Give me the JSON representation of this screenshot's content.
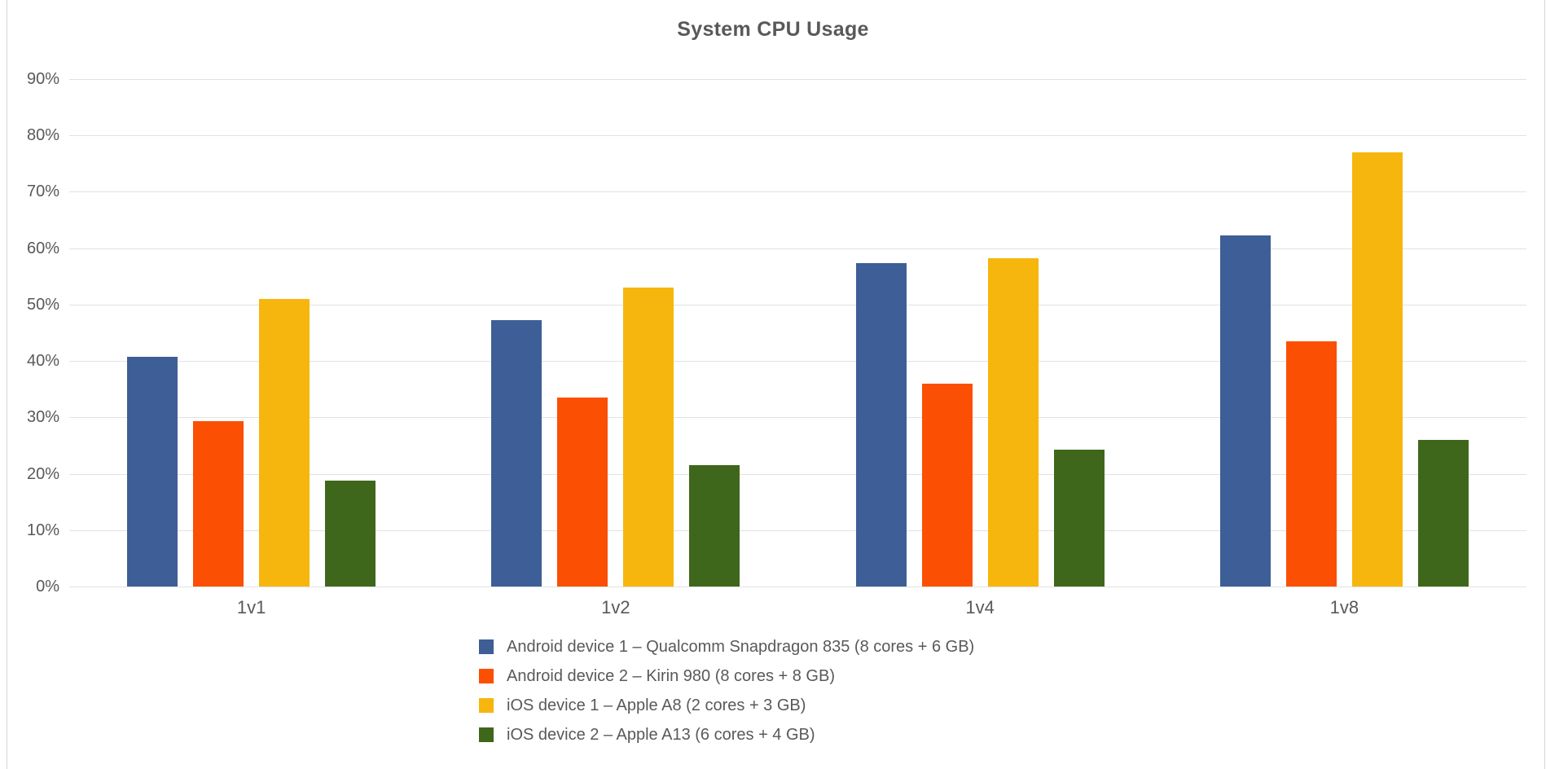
{
  "title": "System CPU Usage",
  "chart_data": {
    "type": "bar",
    "title": "System CPU Usage",
    "xlabel": "",
    "ylabel": "",
    "categories": [
      "1v1",
      "1v2",
      "1v4",
      "1v8"
    ],
    "series": [
      {
        "name": "Android device 1 – Qualcomm Snapdragon 835 (8 cores + 6 GB)",
        "color": "#3D5E96",
        "values": [
          40.8,
          47.3,
          57.3,
          62.2
        ]
      },
      {
        "name": "Android device 2 – Kirin 980 (8 cores + 8 GB)",
        "color": "#FB4F03",
        "values": [
          29.3,
          33.5,
          36.0,
          43.5
        ]
      },
      {
        "name": "iOS device 1 – Apple A8 (2 cores + 3 GB)",
        "color": "#F6B60D",
        "values": [
          51.0,
          53.0,
          58.2,
          77.0
        ]
      },
      {
        "name": "iOS device 2 – Apple A13 (6 cores + 4 GB)",
        "color": "#3F671B",
        "values": [
          18.8,
          21.5,
          24.2,
          26.0
        ]
      }
    ],
    "ylim": [
      0,
      90
    ],
    "y_ticks": [
      "0%",
      "10%",
      "20%",
      "30%",
      "40%",
      "50%",
      "60%",
      "70%",
      "80%",
      "90%"
    ],
    "grid": true,
    "legend_position": "bottom-left-stacked"
  },
  "colors": {
    "background": "#FFFFFF",
    "title_text": "#595959",
    "axis_text": "#595959",
    "gridline": "#E2E2E2",
    "frame_edge": "#D6D6D6"
  }
}
